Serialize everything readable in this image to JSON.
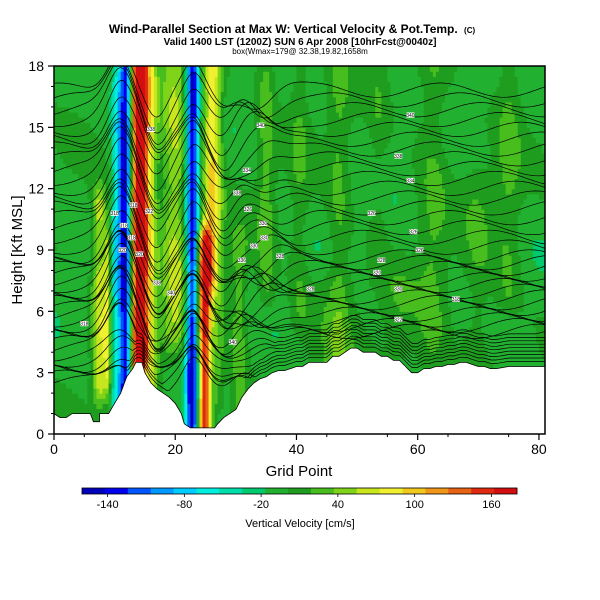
{
  "header": {
    "title": "Wind-Parallel Section at Max W: Vertical Velocity & Pot.Temp.",
    "title_mark": "(C)",
    "subtitle": "Valid 1400 LST (1200Z) SUN 6 Apr 2008 [10hrFcst@0040z]",
    "subtitle2": "box(Wmax=179@ 32.38,19.82,1658m"
  },
  "chart_data": {
    "type": "heatmap",
    "xlabel": "Grid Point",
    "ylabel": "Height [Kft MSL]",
    "xlim": [
      0,
      81
    ],
    "ylim": [
      0,
      18
    ],
    "xticks": [
      "0",
      "20",
      "40",
      "60",
      "80"
    ],
    "xtick_values": [
      0,
      20,
      40,
      60,
      80
    ],
    "yticks": [
      "0",
      "3",
      "6",
      "9",
      "12",
      "15",
      "18"
    ],
    "ytick_values": [
      0,
      3,
      6,
      9,
      12,
      15,
      18
    ],
    "colorbar": {
      "label": "Vertical Velocity [cm/s]",
      "range": [
        -160,
        180
      ],
      "ticks": [
        "-140",
        "-80",
        "-20",
        "40",
        "100",
        "160"
      ],
      "tick_values": [
        -140,
        -80,
        -20,
        40,
        100,
        160
      ],
      "colors": [
        "#0000bb",
        "#0000ee",
        "#0055ff",
        "#0099ff",
        "#00ccff",
        "#00eedd",
        "#00ddaa",
        "#00c96e",
        "#22b030",
        "#1f9d1f",
        "#48be1e",
        "#7fd419",
        "#c8e61e",
        "#f0f030",
        "#f0c81e",
        "#f09619",
        "#e86214",
        "#e02a10",
        "#d20e10"
      ]
    },
    "background_value": -5,
    "velocity_features": [
      {
        "x": 10.5,
        "y0": 2.0,
        "y1": 17.0,
        "value": -60,
        "width": 1.0
      },
      {
        "x": 11.8,
        "y0": 1.0,
        "y1": 18.0,
        "value": -130,
        "width": 0.9
      },
      {
        "x": 13.6,
        "y0": 2.0,
        "y1": 18.0,
        "value": 120,
        "width": 1.0
      },
      {
        "x": 14.6,
        "y0": 4.0,
        "y1": 18.0,
        "value": 170,
        "width": 1.1
      },
      {
        "x": 16.2,
        "y0": 1.0,
        "y1": 18.0,
        "value": 50,
        "width": 1.0
      },
      {
        "x": 20.0,
        "y0": 5.0,
        "y1": 18.0,
        "value": 60,
        "width": 2.5
      },
      {
        "x": 22.8,
        "y0": 0.5,
        "y1": 18.0,
        "value": -150,
        "width": 1.1
      },
      {
        "x": 24.8,
        "y0": 0.5,
        "y1": 9.0,
        "value": 170,
        "width": 1.1
      },
      {
        "x": 25.8,
        "y0": 8.0,
        "y1": 18.0,
        "value": 80,
        "width": 1.3
      },
      {
        "x": 27.0,
        "y0": 2.0,
        "y1": 18.0,
        "value": 35,
        "width": 1.2
      },
      {
        "x": 7.5,
        "y0": 2.5,
        "y1": 11.0,
        "value": 70,
        "width": 1.2
      },
      {
        "x": 8.8,
        "y0": 3.0,
        "y1": 9.0,
        "value": 60,
        "width": 0.6
      },
      {
        "x": 30.5,
        "y0": 1.0,
        "y1": 9.0,
        "value": 35,
        "width": 1.4
      },
      {
        "x": 35.0,
        "y0": 7.0,
        "y1": 18.0,
        "value": 30,
        "width": 1.5
      },
      {
        "x": 40.5,
        "y0": 6.0,
        "y1": 18.0,
        "value": 20,
        "width": 1.5
      },
      {
        "x": 47.0,
        "y0": 4.0,
        "y1": 18.0,
        "value": 25,
        "width": 1.8
      },
      {
        "x": 53.5,
        "y0": 9.0,
        "y1": 18.0,
        "value": 15,
        "width": 1.5
      },
      {
        "x": 62.5,
        "y0": 3.0,
        "y1": 18.0,
        "value": 25,
        "width": 2.5
      },
      {
        "x": 70.0,
        "y0": 3.0,
        "y1": 12.0,
        "value": 20,
        "width": 2.5
      },
      {
        "x": 75.0,
        "y0": 7.0,
        "y1": 18.0,
        "value": 25,
        "width": 2.0
      },
      {
        "x": 46.0,
        "y0": 3.5,
        "y1": 7.0,
        "value": 15,
        "width": 5.0
      },
      {
        "x": 57.0,
        "y0": 4.0,
        "y1": 7.0,
        "value": 15,
        "width": 3.0
      }
    ],
    "terrain": [
      [
        0,
        1.0
      ],
      [
        1,
        0.8
      ],
      [
        2,
        0.8
      ],
      [
        3,
        1.0
      ],
      [
        4,
        1.0
      ],
      [
        5,
        1.0
      ],
      [
        6,
        1.0
      ],
      [
        6.5,
        0.6
      ],
      [
        7.5,
        0.6
      ],
      [
        7.5,
        1.0
      ],
      [
        9,
        1.0
      ],
      [
        10,
        1.5
      ],
      [
        11,
        2.0
      ],
      [
        12,
        2.8
      ],
      [
        13,
        3.2
      ],
      [
        13.5,
        3.5
      ],
      [
        14.5,
        3.5
      ],
      [
        15,
        3.0
      ],
      [
        16,
        2.5
      ],
      [
        17,
        2.2
      ],
      [
        18,
        2.0
      ],
      [
        19,
        1.8
      ],
      [
        20,
        1.5
      ],
      [
        21,
        1.0
      ],
      [
        21.5,
        0.5
      ],
      [
        22.5,
        0.3
      ],
      [
        26.5,
        0.3
      ],
      [
        27,
        0.5
      ],
      [
        28,
        0.8
      ],
      [
        29,
        1.0
      ],
      [
        30,
        1.2
      ],
      [
        31,
        1.8
      ],
      [
        32,
        2.2
      ],
      [
        33,
        2.5
      ],
      [
        34,
        2.7
      ],
      [
        35,
        2.8
      ],
      [
        36,
        3.0
      ],
      [
        37,
        3.1
      ],
      [
        38,
        3.1
      ],
      [
        39,
        3.2
      ],
      [
        40,
        3.3
      ],
      [
        41,
        3.3
      ],
      [
        42,
        3.5
      ],
      [
        45,
        3.5
      ],
      [
        46,
        3.8
      ],
      [
        47,
        3.8
      ],
      [
        48,
        4.0
      ],
      [
        49,
        4.2
      ],
      [
        50,
        4.2
      ],
      [
        51,
        4.0
      ],
      [
        53,
        4.0
      ],
      [
        54,
        3.8
      ],
      [
        55,
        3.8
      ],
      [
        56,
        3.6
      ],
      [
        57,
        3.6
      ],
      [
        58,
        3.3
      ],
      [
        59,
        3.0
      ],
      [
        60,
        3.0
      ],
      [
        61,
        3.2
      ],
      [
        62,
        3.2
      ],
      [
        63,
        3.3
      ],
      [
        64,
        3.3
      ],
      [
        65,
        3.4
      ],
      [
        66,
        3.4
      ],
      [
        67,
        3.5
      ],
      [
        68,
        3.5
      ],
      [
        69,
        3.4
      ],
      [
        70,
        3.3
      ],
      [
        71,
        3.3
      ],
      [
        72,
        3.2
      ],
      [
        73,
        3.2
      ],
      [
        75,
        3.3
      ],
      [
        77,
        3.3
      ],
      [
        79,
        3.3
      ],
      [
        81,
        3.3
      ]
    ],
    "theta_contours": {
      "count": 40,
      "base": 2.5,
      "spacing_low": 0.28,
      "spacing_high": 0.48
    },
    "contour_labels": [
      {
        "text": "318",
        "x": 5,
        "y": 5.4
      },
      {
        "text": "318",
        "x": 10,
        "y": 10.8
      },
      {
        "text": "318",
        "x": 11.5,
        "y": 10.2
      },
      {
        "text": "320",
        "x": 11.3,
        "y": 9.0
      },
      {
        "text": "318",
        "x": 12.8,
        "y": 9.6
      },
      {
        "text": "318",
        "x": 13.1,
        "y": 11.2
      },
      {
        "text": "320",
        "x": 14.1,
        "y": 8.8
      },
      {
        "text": "322",
        "x": 15.7,
        "y": 10.9
      },
      {
        "text": "338",
        "x": 16.0,
        "y": 14.9
      },
      {
        "text": "338",
        "x": 17.0,
        "y": 7.4
      },
      {
        "text": "340",
        "x": 19.3,
        "y": 6.9
      },
      {
        "text": "340",
        "x": 29.5,
        "y": 4.5
      },
      {
        "text": "338",
        "x": 30.2,
        "y": 11.8
      },
      {
        "text": "336",
        "x": 31.0,
        "y": 8.5
      },
      {
        "text": "334",
        "x": 31.8,
        "y": 12.9
      },
      {
        "text": "326",
        "x": 32.0,
        "y": 11.0
      },
      {
        "text": "330",
        "x": 33.0,
        "y": 9.2
      },
      {
        "text": "340",
        "x": 34.1,
        "y": 15.1
      },
      {
        "text": "330",
        "x": 34.5,
        "y": 10.3
      },
      {
        "text": "330",
        "x": 34.7,
        "y": 9.6
      },
      {
        "text": "328",
        "x": 37.3,
        "y": 8.7
      },
      {
        "text": "328",
        "x": 42.3,
        "y": 7.1
      },
      {
        "text": "326",
        "x": 52.4,
        "y": 10.8
      },
      {
        "text": "320",
        "x": 53.3,
        "y": 7.9
      },
      {
        "text": "328",
        "x": 54.0,
        "y": 8.5
      },
      {
        "text": "338",
        "x": 56.8,
        "y": 13.6
      },
      {
        "text": "330",
        "x": 56.8,
        "y": 7.1
      },
      {
        "text": "322",
        "x": 56.8,
        "y": 5.6
      },
      {
        "text": "334",
        "x": 58.8,
        "y": 12.4
      },
      {
        "text": "340",
        "x": 58.8,
        "y": 15.6
      },
      {
        "text": "326",
        "x": 59.3,
        "y": 9.9
      },
      {
        "text": "326",
        "x": 60.3,
        "y": 9.0
      },
      {
        "text": "318",
        "x": 66.3,
        "y": 6.6
      }
    ]
  }
}
